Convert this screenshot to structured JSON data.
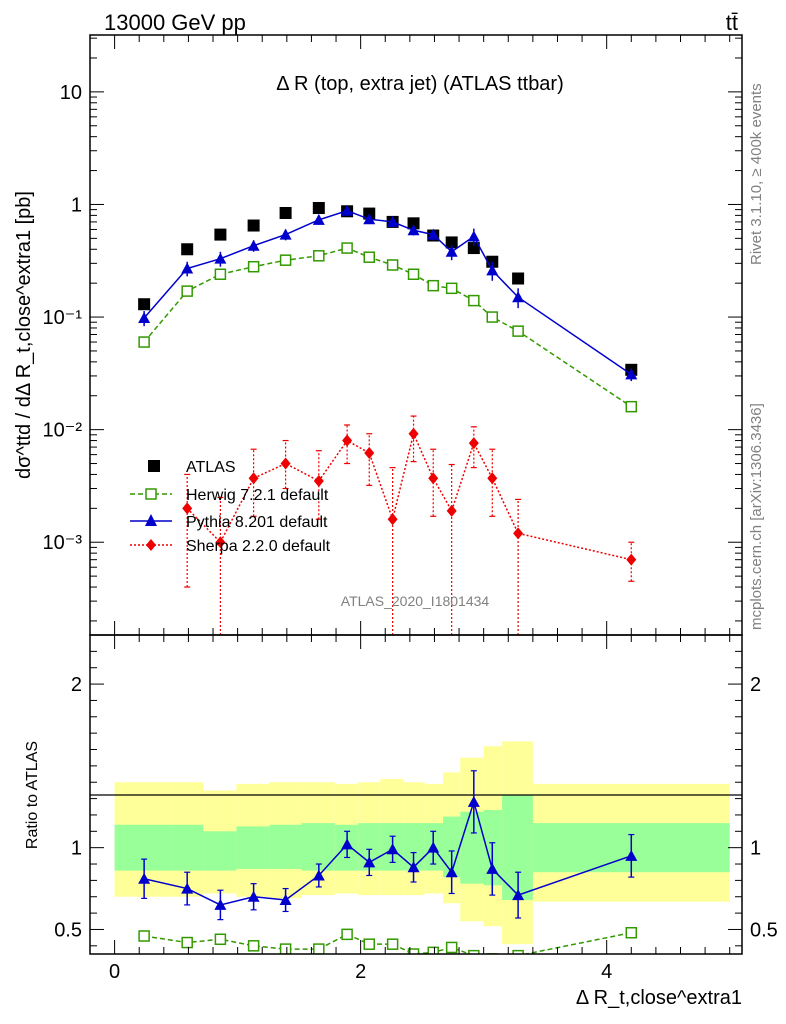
{
  "header": {
    "left": "13000 GeV pp",
    "right": "tt̄"
  },
  "side_text": {
    "rivet": "Rivet 3.1.10, ≥ 400k events",
    "mcplots": "mcplots.cern.ch [arXiv:1306.3436]"
  },
  "chart_data": [
    {
      "type": "scatter",
      "title": "Δ R (top, extra jet) (ATLAS ttbar)",
      "ylabel": "dσ^ttd / dΔ R_t,close^extra1 [pb]",
      "xlabel": "Δ R_t,close^extra1",
      "y_scale": "log",
      "xlim": [
        -0.2,
        5.1
      ],
      "ylim": [
        0.00015,
        32
      ],
      "y_ticks": [
        {
          "v": 0.001,
          "label": "10⁻³"
        },
        {
          "v": 0.01,
          "label": "10⁻²"
        },
        {
          "v": 0.1,
          "label": "10⁻¹"
        },
        {
          "v": 1,
          "label": "1"
        },
        {
          "v": 10,
          "label": "10"
        }
      ],
      "watermark": "ATLAS_2020_I1801434",
      "legend_position": "middle-left",
      "series": [
        {
          "name": "ATLAS",
          "color": "#000000",
          "marker": "square-filled",
          "x": [
            0.24,
            0.59,
            0.86,
            1.13,
            1.39,
            1.66,
            1.89,
            2.07,
            2.26,
            2.43,
            2.59,
            2.74,
            2.92,
            3.07,
            3.28,
            4.2
          ],
          "y": [
            0.13,
            0.4,
            0.54,
            0.65,
            0.84,
            0.93,
            0.87,
            0.83,
            0.7,
            0.68,
            0.53,
            0.46,
            0.41,
            0.31,
            0.22,
            0.034
          ]
        },
        {
          "name": "Herwig 7.2.1 default",
          "color": "#339900",
          "marker": "square-open",
          "line": "dashed",
          "x": [
            0.24,
            0.59,
            0.86,
            1.13,
            1.39,
            1.66,
            1.89,
            2.07,
            2.26,
            2.43,
            2.59,
            2.74,
            2.92,
            3.07,
            3.28,
            4.2
          ],
          "y": [
            0.06,
            0.17,
            0.24,
            0.28,
            0.32,
            0.35,
            0.41,
            0.34,
            0.29,
            0.24,
            0.19,
            0.18,
            0.14,
            0.1,
            0.075,
            0.016
          ]
        },
        {
          "name": "Pythia 8.201 default",
          "color": "#0000cc",
          "marker": "triangle-filled",
          "line": "solid",
          "x": [
            0.24,
            0.59,
            0.86,
            1.13,
            1.39,
            1.66,
            1.89,
            2.07,
            2.26,
            2.43,
            2.59,
            2.74,
            2.92,
            3.07,
            3.28,
            4.2
          ],
          "y": [
            0.098,
            0.27,
            0.33,
            0.43,
            0.54,
            0.73,
            0.88,
            0.74,
            0.7,
            0.59,
            0.54,
            0.38,
            0.52,
            0.26,
            0.15,
            0.031
          ],
          "err": [
            0.015,
            0.04,
            0.05,
            0.05,
            0.06,
            0.07,
            0.08,
            0.07,
            0.07,
            0.06,
            0.06,
            0.06,
            0.09,
            0.05,
            0.03,
            0.004
          ]
        },
        {
          "name": "Sherpa 2.2.0 default",
          "color": "#ee0000",
          "marker": "diamond-filled",
          "line": "dotted",
          "x": [
            0.59,
            0.86,
            1.13,
            1.39,
            1.66,
            1.89,
            2.07,
            2.26,
            2.43,
            2.59,
            2.74,
            2.92,
            3.07,
            3.28,
            4.2
          ],
          "y": [
            0.002,
            0.001,
            0.0037,
            0.005,
            0.0035,
            0.008,
            0.0062,
            0.0016,
            0.0092,
            0.0037,
            0.0019,
            0.0076,
            0.0037,
            0.0012,
            0.0007
          ],
          "err_lo": [
            0.0016,
            0.00095,
            0.002,
            0.002,
            0.0019,
            0.003,
            0.003,
            0.0015,
            0.004,
            0.002,
            0.0018,
            0.003,
            0.002,
            0.00115,
            0.00025
          ],
          "err_hi": [
            0.002,
            0.0015,
            0.003,
            0.003,
            0.003,
            0.003,
            0.003,
            0.003,
            0.004,
            0.003,
            0.003,
            0.003,
            0.003,
            0.0012,
            0.0003
          ]
        }
      ]
    },
    {
      "type": "line",
      "ylabel": "Ratio to ATLAS",
      "xlabel": "Δ R_t,close^extra1",
      "xlim": [
        -0.2,
        5.1
      ],
      "ylim": [
        0.35,
        2.3
      ],
      "x_ticks": [
        0,
        2,
        4
      ],
      "y_ticks": [
        0.5,
        1,
        2
      ],
      "bands": {
        "edges": [
          0,
          0.46,
          0.72,
          0.99,
          1.26,
          1.52,
          1.79,
          1.98,
          2.16,
          2.35,
          2.52,
          2.67,
          2.81,
          3.0,
          3.15,
          3.4,
          5.0
        ],
        "inner_color": "#99ff99",
        "outer_color": "#ffff99",
        "inner_lo": [
          0.86,
          0.86,
          0.86,
          0.87,
          0.87,
          0.86,
          0.86,
          0.86,
          0.86,
          0.86,
          0.86,
          0.82,
          0.78,
          0.77,
          0.68,
          0.85
        ],
        "inner_hi": [
          1.14,
          1.14,
          1.1,
          1.13,
          1.14,
          1.15,
          1.14,
          1.15,
          1.15,
          1.15,
          1.15,
          1.19,
          1.22,
          1.23,
          1.32,
          1.15
        ],
        "outer_lo": [
          0.7,
          0.7,
          0.72,
          0.7,
          0.69,
          0.71,
          0.72,
          0.71,
          0.71,
          0.71,
          0.72,
          0.66,
          0.55,
          0.52,
          0.41,
          0.67
        ],
        "outer_hi": [
          1.4,
          1.4,
          1.35,
          1.39,
          1.4,
          1.4,
          1.39,
          1.4,
          1.42,
          1.4,
          1.39,
          1.46,
          1.55,
          1.62,
          1.65,
          1.39
        ]
      },
      "series": [
        {
          "name": "Herwig 7.2.1 default",
          "color": "#339900",
          "marker": "square-open",
          "line": "dashed",
          "x": [
            0.24,
            0.59,
            0.86,
            1.13,
            1.39,
            1.66,
            1.89,
            2.07,
            2.26,
            2.43,
            2.59,
            2.74,
            2.92,
            3.07,
            3.28,
            4.2
          ],
          "y": [
            0.46,
            0.42,
            0.44,
            0.4,
            0.38,
            0.38,
            0.47,
            0.41,
            0.41,
            0.35,
            0.36,
            0.39,
            0.34,
            0.32,
            0.34,
            0.48
          ]
        },
        {
          "name": "Pythia 8.201 default",
          "color": "#0000cc",
          "marker": "triangle-filled",
          "line": "solid",
          "x": [
            0.24,
            0.59,
            0.86,
            1.13,
            1.39,
            1.66,
            1.89,
            2.07,
            2.26,
            2.43,
            2.59,
            2.74,
            2.92,
            3.07,
            3.28,
            4.2
          ],
          "y": [
            0.81,
            0.75,
            0.65,
            0.7,
            0.68,
            0.83,
            1.02,
            0.91,
            0.99,
            0.88,
            1.0,
            0.85,
            1.28,
            0.87,
            0.71,
            0.95
          ],
          "err": [
            0.12,
            0.1,
            0.09,
            0.08,
            0.07,
            0.07,
            0.08,
            0.08,
            0.08,
            0.09,
            0.1,
            0.13,
            0.19,
            0.16,
            0.14,
            0.13
          ]
        }
      ]
    }
  ]
}
